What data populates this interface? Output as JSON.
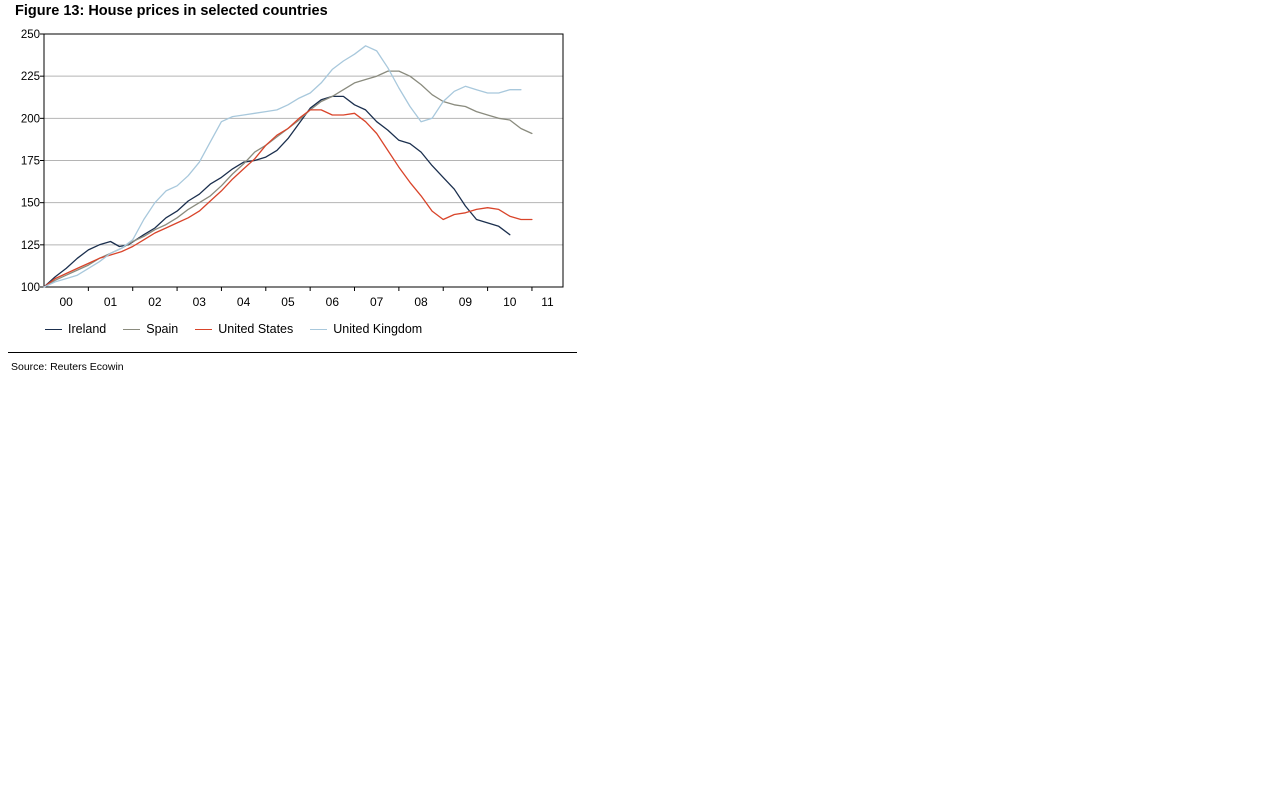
{
  "figure": {
    "title": "Figure 13: House prices in selected countries",
    "source": "Source: Reuters Ecowin"
  },
  "chart_data": {
    "type": "line",
    "title": "Figure 13: House prices in selected countries",
    "xlabel": "",
    "ylabel": "",
    "xlim": [
      2000.0,
      2011.7
    ],
    "ylim": [
      100,
      250
    ],
    "yticks": [
      100,
      125,
      150,
      175,
      200,
      225,
      250
    ],
    "xtick_labels": [
      {
        "label": "00",
        "x": 2000.5
      },
      {
        "label": "01",
        "x": 2001.5
      },
      {
        "label": "02",
        "x": 2002.5
      },
      {
        "label": "03",
        "x": 2003.5
      },
      {
        "label": "04",
        "x": 2004.5
      },
      {
        "label": "05",
        "x": 2005.5
      },
      {
        "label": "06",
        "x": 2006.5
      },
      {
        "label": "07",
        "x": 2007.5
      },
      {
        "label": "08",
        "x": 2008.5
      },
      {
        "label": "09",
        "x": 2009.5
      },
      {
        "label": "10",
        "x": 2010.5
      },
      {
        "label": "11",
        "x": 2011.35
      }
    ],
    "year_boundaries": [
      2001,
      2002,
      2003,
      2004,
      2005,
      2006,
      2007,
      2008,
      2009,
      2010,
      2011
    ],
    "grid": "horizontal",
    "legend_position": "bottom",
    "series": [
      {
        "name": "Ireland",
        "color": "#1b2f4e",
        "points": [
          [
            2000.0,
            100
          ],
          [
            2000.25,
            106
          ],
          [
            2000.5,
            111
          ],
          [
            2000.75,
            117
          ],
          [
            2001.0,
            122
          ],
          [
            2001.25,
            125
          ],
          [
            2001.5,
            127
          ],
          [
            2001.7,
            124
          ],
          [
            2001.9,
            125
          ],
          [
            2002.25,
            131
          ],
          [
            2002.5,
            135
          ],
          [
            2002.75,
            141
          ],
          [
            2003.0,
            145
          ],
          [
            2003.25,
            151
          ],
          [
            2003.5,
            155
          ],
          [
            2003.75,
            161
          ],
          [
            2004.0,
            165
          ],
          [
            2004.25,
            170
          ],
          [
            2004.5,
            174
          ],
          [
            2004.75,
            175
          ],
          [
            2005.0,
            177
          ],
          [
            2005.25,
            181
          ],
          [
            2005.5,
            188
          ],
          [
            2005.75,
            197
          ],
          [
            2006.0,
            206
          ],
          [
            2006.25,
            211
          ],
          [
            2006.5,
            213
          ],
          [
            2006.75,
            213
          ],
          [
            2007.0,
            208
          ],
          [
            2007.25,
            205
          ],
          [
            2007.5,
            198
          ],
          [
            2007.75,
            193
          ],
          [
            2008.0,
            187
          ],
          [
            2008.25,
            185
          ],
          [
            2008.5,
            180
          ],
          [
            2008.75,
            172
          ],
          [
            2009.0,
            165
          ],
          [
            2009.25,
            158
          ],
          [
            2009.5,
            148
          ],
          [
            2009.75,
            140
          ],
          [
            2010.0,
            138
          ],
          [
            2010.25,
            136
          ],
          [
            2010.5,
            131
          ]
        ]
      },
      {
        "name": "Spain",
        "color": "#8a8b7e",
        "points": [
          [
            2000.0,
            100
          ],
          [
            2000.25,
            104
          ],
          [
            2000.5,
            107
          ],
          [
            2000.75,
            110
          ],
          [
            2001.0,
            113
          ],
          [
            2001.25,
            117
          ],
          [
            2001.5,
            120
          ],
          [
            2001.75,
            123
          ],
          [
            2002.0,
            127
          ],
          [
            2002.25,
            130
          ],
          [
            2002.5,
            134
          ],
          [
            2002.75,
            137
          ],
          [
            2003.0,
            141
          ],
          [
            2003.25,
            146
          ],
          [
            2003.5,
            150
          ],
          [
            2003.75,
            154
          ],
          [
            2004.0,
            160
          ],
          [
            2004.25,
            167
          ],
          [
            2004.5,
            173
          ],
          [
            2004.75,
            180
          ],
          [
            2005.0,
            184
          ],
          [
            2005.25,
            189
          ],
          [
            2005.5,
            194
          ],
          [
            2005.75,
            199
          ],
          [
            2006.0,
            205
          ],
          [
            2006.25,
            210
          ],
          [
            2006.5,
            213
          ],
          [
            2006.75,
            217
          ],
          [
            2007.0,
            221
          ],
          [
            2007.25,
            223
          ],
          [
            2007.5,
            225
          ],
          [
            2007.75,
            228
          ],
          [
            2008.0,
            228
          ],
          [
            2008.25,
            225
          ],
          [
            2008.5,
            220
          ],
          [
            2008.75,
            214
          ],
          [
            2009.0,
            210
          ],
          [
            2009.25,
            208
          ],
          [
            2009.5,
            207
          ],
          [
            2009.75,
            204
          ],
          [
            2010.0,
            202
          ],
          [
            2010.25,
            200
          ],
          [
            2010.5,
            199
          ],
          [
            2010.75,
            194
          ],
          [
            2011.0,
            191
          ]
        ]
      },
      {
        "name": "United States",
        "color": "#d9442a",
        "points": [
          [
            2000.0,
            100
          ],
          [
            2000.25,
            105
          ],
          [
            2000.5,
            108
          ],
          [
            2000.75,
            111
          ],
          [
            2001.0,
            114
          ],
          [
            2001.25,
            117
          ],
          [
            2001.5,
            119
          ],
          [
            2001.75,
            121
          ],
          [
            2002.0,
            124
          ],
          [
            2002.25,
            128
          ],
          [
            2002.5,
            132
          ],
          [
            2002.75,
            135
          ],
          [
            2003.0,
            138
          ],
          [
            2003.25,
            141
          ],
          [
            2003.5,
            145
          ],
          [
            2003.75,
            151
          ],
          [
            2004.0,
            157
          ],
          [
            2004.25,
            164
          ],
          [
            2004.5,
            170
          ],
          [
            2004.75,
            176
          ],
          [
            2005.0,
            184
          ],
          [
            2005.25,
            190
          ],
          [
            2005.5,
            194
          ],
          [
            2005.75,
            200
          ],
          [
            2006.0,
            205
          ],
          [
            2006.25,
            205
          ],
          [
            2006.5,
            202
          ],
          [
            2006.75,
            202
          ],
          [
            2007.0,
            203
          ],
          [
            2007.25,
            198
          ],
          [
            2007.5,
            191
          ],
          [
            2007.75,
            181
          ],
          [
            2008.0,
            171
          ],
          [
            2008.25,
            162
          ],
          [
            2008.5,
            154
          ],
          [
            2008.75,
            145
          ],
          [
            2009.0,
            140
          ],
          [
            2009.25,
            143
          ],
          [
            2009.5,
            144
          ],
          [
            2009.75,
            146
          ],
          [
            2010.0,
            147
          ],
          [
            2010.25,
            146
          ],
          [
            2010.5,
            142
          ],
          [
            2010.75,
            140
          ],
          [
            2011.0,
            140
          ]
        ]
      },
      {
        "name": "United Kingdom",
        "color": "#a8c8dc",
        "points": [
          [
            2000.0,
            100
          ],
          [
            2000.25,
            103
          ],
          [
            2000.5,
            105
          ],
          [
            2000.75,
            107
          ],
          [
            2001.0,
            111
          ],
          [
            2001.25,
            115
          ],
          [
            2001.5,
            120
          ],
          [
            2001.75,
            123
          ],
          [
            2002.0,
            128
          ],
          [
            2002.25,
            140
          ],
          [
            2002.5,
            150
          ],
          [
            2002.75,
            157
          ],
          [
            2003.0,
            160
          ],
          [
            2003.25,
            166
          ],
          [
            2003.5,
            174
          ],
          [
            2003.75,
            186
          ],
          [
            2004.0,
            198
          ],
          [
            2004.25,
            201
          ],
          [
            2004.5,
            202
          ],
          [
            2004.75,
            203
          ],
          [
            2005.0,
            204
          ],
          [
            2005.25,
            205
          ],
          [
            2005.5,
            208
          ],
          [
            2005.75,
            212
          ],
          [
            2006.0,
            215
          ],
          [
            2006.25,
            221
          ],
          [
            2006.5,
            229
          ],
          [
            2006.75,
            234
          ],
          [
            2007.0,
            238
          ],
          [
            2007.25,
            243
          ],
          [
            2007.5,
            240
          ],
          [
            2007.75,
            230
          ],
          [
            2008.0,
            218
          ],
          [
            2008.25,
            207
          ],
          [
            2008.5,
            198
          ],
          [
            2008.75,
            200
          ],
          [
            2009.0,
            210
          ],
          [
            2009.25,
            216
          ],
          [
            2009.5,
            219
          ],
          [
            2009.75,
            217
          ],
          [
            2010.0,
            215
          ],
          [
            2010.25,
            215
          ],
          [
            2010.5,
            217
          ],
          [
            2010.75,
            217
          ]
        ]
      }
    ]
  }
}
